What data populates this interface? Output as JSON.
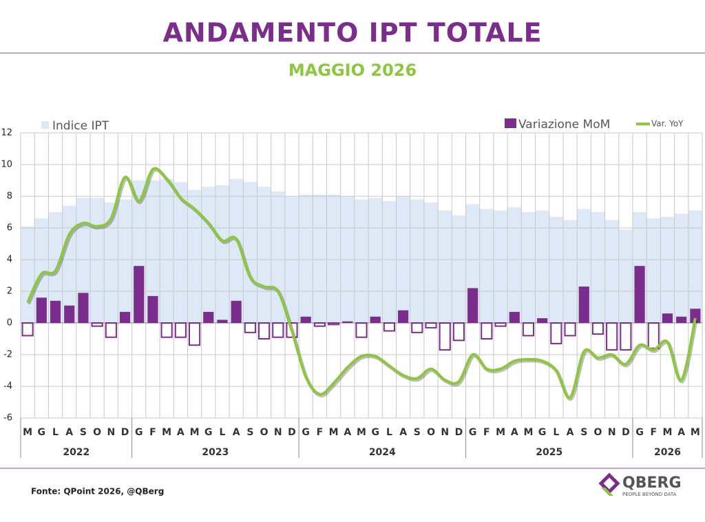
{
  "chart_data": {
    "type": "bar_line",
    "title": "ANDAMENTO IPT TOTALE",
    "subtitle": "MAGGIO 2026",
    "source": "Fonte: QPoint 2026, @QBerg",
    "logo": {
      "name": "QBERG",
      "tagline": "PEOPLE BEYOND DATA"
    },
    "categories": [
      "M",
      "G",
      "L",
      "A",
      "S",
      "O",
      "N",
      "D",
      "G",
      "F",
      "M",
      "A",
      "M",
      "G",
      "L",
      "A",
      "S",
      "O",
      "N",
      "D",
      "G",
      "F",
      "M",
      "A",
      "M",
      "G",
      "L",
      "A",
      "S",
      "O",
      "N",
      "D",
      "G",
      "F",
      "M",
      "A",
      "M",
      "G",
      "L",
      "A",
      "S",
      "O",
      "N",
      "D",
      "G",
      "F",
      "M",
      "A",
      "M"
    ],
    "years": [
      "2022",
      "2023",
      "2024",
      "2025",
      "2026"
    ],
    "ylim": [
      -6,
      12
    ],
    "yticks": [
      -6,
      -4,
      -2,
      0,
      2,
      4,
      6,
      8,
      10,
      12
    ],
    "grid": true,
    "series": [
      {
        "name": "Indice IPT",
        "kind": "bar",
        "color": "#dde9f6",
        "values": [
          6.1,
          6.6,
          7.0,
          7.4,
          7.9,
          7.9,
          7.6,
          7.8,
          9.0,
          9.0,
          9.1,
          8.9,
          8.4,
          8.6,
          8.7,
          9.1,
          8.9,
          8.6,
          8.3,
          8.0,
          8.1,
          8.1,
          8.1,
          8.0,
          7.8,
          7.9,
          7.7,
          8.0,
          7.8,
          7.6,
          7.1,
          6.8,
          7.5,
          7.2,
          7.1,
          7.3,
          7.0,
          7.1,
          6.7,
          6.5,
          7.2,
          7.0,
          6.5,
          5.9,
          7.0,
          6.6,
          6.7,
          6.9,
          7.1
        ]
      },
      {
        "name": "Variazione MoM",
        "kind": "bar",
        "color": "#7b2d8b",
        "values": [
          -0.8,
          1.6,
          1.4,
          1.1,
          1.9,
          -0.2,
          -0.9,
          0.7,
          3.6,
          1.7,
          -0.9,
          -0.9,
          -1.4,
          0.7,
          0.2,
          1.4,
          -0.6,
          -1.0,
          -0.9,
          -0.9,
          0.4,
          -0.2,
          -0.1,
          0.1,
          -0.9,
          0.4,
          -0.5,
          0.8,
          -0.6,
          -0.3,
          -1.7,
          -1.1,
          2.2,
          -1.0,
          -0.2,
          0.7,
          -0.8,
          0.3,
          -1.3,
          -0.8,
          2.3,
          -0.7,
          -1.7,
          -1.7,
          3.6,
          -1.6,
          0.6,
          0.4,
          0.9
        ]
      },
      {
        "name": "Var. YoY",
        "kind": "line",
        "color": "#8dc63f",
        "values": [
          1.3,
          3.1,
          3.3,
          5.6,
          6.3,
          6.1,
          6.6,
          9.2,
          7.7,
          9.7,
          9.1,
          7.9,
          7.2,
          6.3,
          5.2,
          5.3,
          2.9,
          2.3,
          2.0,
          -0.5,
          -3.4,
          -4.5,
          -3.8,
          -2.8,
          -2.1,
          -2.1,
          -2.7,
          -3.3,
          -3.5,
          -2.9,
          -3.6,
          -3.7,
          -2.0,
          -2.9,
          -2.9,
          -2.4,
          -2.3,
          -2.4,
          -3.0,
          -4.7,
          -1.8,
          -2.2,
          -2.0,
          -2.6,
          -1.4,
          -1.7,
          -1.2,
          -3.6,
          0.3
        ]
      }
    ]
  }
}
